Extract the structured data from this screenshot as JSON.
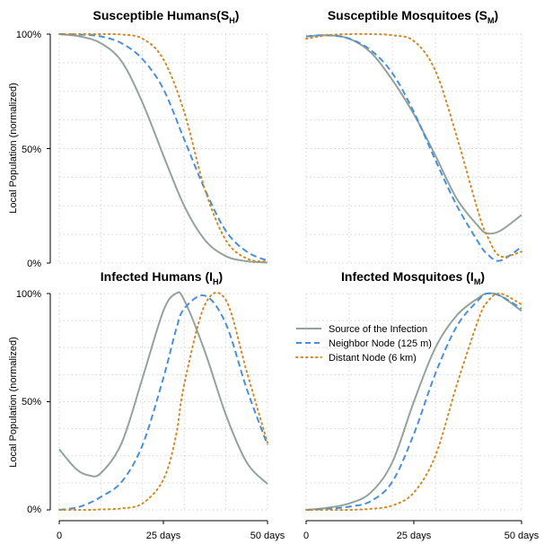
{
  "colors": {
    "source": "#93a39c",
    "neighbor": "#4a90d9",
    "distant": "#d08a28"
  },
  "y_axis_label": "Local Population (normalized)",
  "y_ticks": [
    "0%",
    "50%",
    "100%"
  ],
  "x_ticks": [
    "0",
    "25 days",
    "50 days"
  ],
  "legend": [
    {
      "label": "Source of the Infection",
      "series": "source",
      "style": "solid"
    },
    {
      "label": "Neighbor Node (125 m)",
      "series": "neighbor",
      "style": "dashed"
    },
    {
      "label": "Distant Node (6 km)",
      "series": "distant",
      "style": "dotted"
    }
  ],
  "chart_data": [
    {
      "type": "line",
      "title": "Susceptible Humans",
      "title_sub": "H",
      "xlabel": "days",
      "ylabel": "Local Population (normalized)",
      "xlim": [
        0,
        50
      ],
      "ylim": [
        0,
        100
      ],
      "x": [
        0,
        5,
        10,
        15,
        20,
        25,
        30,
        35,
        40,
        45,
        50
      ],
      "series": [
        {
          "name": "Source of the Infection",
          "key": "source",
          "values": [
            100,
            99,
            96,
            88,
            70,
            47,
            25,
            10,
            3,
            0.8,
            0.2
          ]
        },
        {
          "name": "Neighbor Node (125 m)",
          "key": "neighbor",
          "values": [
            100,
            99.8,
            99,
            96,
            89,
            76,
            54,
            32,
            14,
            5,
            1
          ]
        },
        {
          "name": "Distant Node (6 km)",
          "key": "distant",
          "values": [
            100,
            100,
            100,
            99.8,
            98,
            89,
            66,
            32,
            10,
            2,
            0.5
          ]
        }
      ]
    },
    {
      "type": "line",
      "title": "Susceptible Mosquitoes",
      "title_sub": "M",
      "xlabel": "days",
      "ylabel": "Local Population (normalized)",
      "xlim": [
        0,
        50
      ],
      "ylim": [
        0,
        100
      ],
      "x": [
        0,
        5,
        10,
        15,
        20,
        25,
        30,
        35,
        40,
        42,
        45,
        50
      ],
      "series": [
        {
          "name": "Source of the Infection",
          "key": "source",
          "values": [
            99,
            99.5,
            98,
            92,
            80,
            65,
            47,
            28,
            16,
            13,
            14,
            21
          ]
        },
        {
          "name": "Neighbor Node (125 m)",
          "key": "neighbor",
          "values": [
            99,
            99.5,
            98,
            93,
            83,
            66,
            45,
            25,
            9,
            4,
            1,
            7
          ]
        },
        {
          "name": "Distant Node (6 km)",
          "key": "distant",
          "values": [
            98,
            99.5,
            100,
            100,
            99.5,
            97,
            84,
            55,
            22,
            12,
            3,
            5
          ]
        }
      ]
    },
    {
      "type": "line",
      "title": "Infected Humans",
      "title_sub": "H",
      "xlabel": "days",
      "ylabel": "Local Population (normalized)",
      "xlim": [
        0,
        50
      ],
      "ylim": [
        0,
        100
      ],
      "x": [
        0,
        4,
        7,
        10,
        15,
        20,
        25,
        28,
        30,
        35,
        40,
        45,
        50
      ],
      "series": [
        {
          "name": "Source of the Infection",
          "key": "source",
          "values": [
            28,
            19,
            16,
            17,
            31,
            61,
            92,
            100,
            97,
            73,
            44,
            22,
            12
          ]
        },
        {
          "name": "Neighbor Node (125 m)",
          "key": "neighbor",
          "values": [
            0,
            1,
            3,
            6,
            13,
            30,
            61,
            83,
            93,
            99,
            86,
            56,
            30
          ]
        },
        {
          "name": "Distant Node (6 km)",
          "key": "distant",
          "values": [
            0,
            0,
            0,
            0.2,
            0.7,
            3,
            14,
            34,
            58,
            95,
            97,
            64,
            31
          ]
        }
      ]
    },
    {
      "type": "line",
      "title": "Infected Mosquitoes",
      "title_sub": "M",
      "xlabel": "days",
      "ylabel": "Local Population (normalized)",
      "xlim": [
        0,
        50
      ],
      "ylim": [
        0,
        100
      ],
      "x": [
        0,
        5,
        10,
        15,
        20,
        25,
        30,
        35,
        40,
        42,
        45,
        50
      ],
      "series": [
        {
          "name": "Source of the Infection",
          "key": "source",
          "values": [
            0,
            1,
            3,
            8,
            22,
            50,
            75,
            90,
            98,
            100,
            99,
            92
          ]
        },
        {
          "name": "Neighbor Node (125 m)",
          "key": "neighbor",
          "values": [
            0,
            0.5,
            1.5,
            4,
            13,
            35,
            63,
            85,
            97,
            100,
            99,
            93
          ]
        },
        {
          "name": "Distant Node (6 km)",
          "key": "distant",
          "values": [
            0,
            0,
            0,
            0.5,
            2,
            8,
            25,
            58,
            88,
            96,
            100,
            95
          ]
        }
      ]
    }
  ]
}
